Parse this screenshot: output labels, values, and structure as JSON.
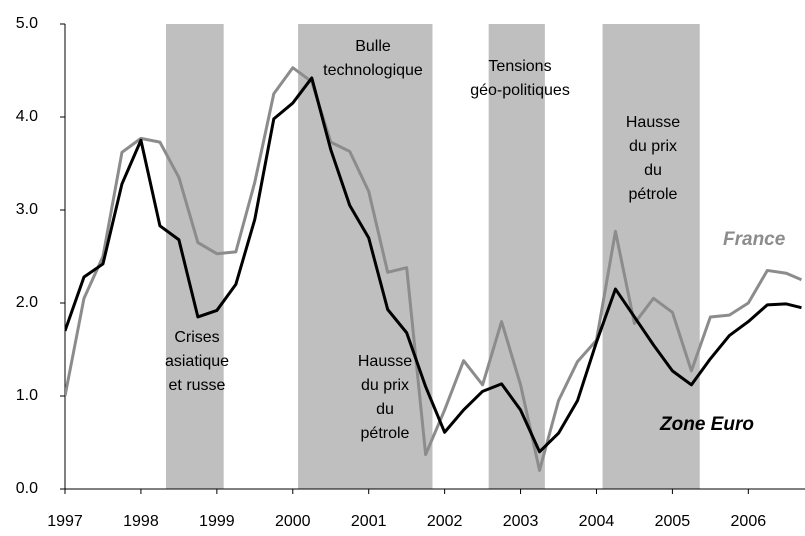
{
  "chart_data": {
    "type": "line",
    "x": [
      1997,
      1997.25,
      1997.5,
      1997.75,
      1998,
      1998.25,
      1998.5,
      1998.75,
      1999,
      1999.25,
      1999.5,
      1999.75,
      2000,
      2000.25,
      2000.5,
      2000.75,
      2001,
      2001.25,
      2001.5,
      2001.75,
      2002,
      2002.25,
      2002.5,
      2002.75,
      2003,
      2003.25,
      2003.5,
      2003.75,
      2004,
      2004.25,
      2004.5,
      2004.75,
      2005,
      2005.25,
      2005.5,
      2005.75,
      2006,
      2006.25,
      2006.5,
      2006.7
    ],
    "series": [
      {
        "name": "France",
        "color": "#8c8c8c",
        "values": [
          1.0,
          2.05,
          2.5,
          3.62,
          3.77,
          3.73,
          3.35,
          2.65,
          2.53,
          2.55,
          3.3,
          4.25,
          4.53,
          4.38,
          3.73,
          3.63,
          3.2,
          2.33,
          2.38,
          0.37,
          0.85,
          1.38,
          1.12,
          1.8,
          1.12,
          0.2,
          0.95,
          1.37,
          1.6,
          2.77,
          1.78,
          2.05,
          1.9,
          1.27,
          1.85,
          1.87,
          2.0,
          2.35,
          2.32,
          2.25
        ]
      },
      {
        "name": "Zone Euro",
        "color": "#000000",
        "values": [
          1.7,
          2.28,
          2.42,
          3.28,
          3.75,
          2.83,
          2.68,
          1.85,
          1.92,
          2.2,
          2.9,
          3.98,
          4.15,
          4.42,
          3.65,
          3.05,
          2.7,
          1.93,
          1.68,
          1.1,
          0.61,
          0.85,
          1.05,
          1.13,
          0.85,
          0.4,
          0.6,
          0.95,
          1.58,
          2.15,
          1.85,
          1.55,
          1.27,
          1.12,
          1.4,
          1.65,
          1.8,
          1.98,
          1.99,
          1.95
        ]
      }
    ],
    "periods": [
      [
        1998.33,
        1999.09
      ],
      [
        2000.07,
        2001.84
      ],
      [
        2002.58,
        2003.32
      ],
      [
        2004.08,
        2005.36
      ]
    ],
    "period_color": "#bfbfbf",
    "annotations": [
      [
        "Crises",
        "asiatique",
        "et russe"
      ],
      [
        "Bulle",
        "technologique"
      ],
      [
        "Tensions",
        "géo-politiques"
      ],
      [
        "Hausse",
        "du prix",
        "du",
        "pétrole"
      ],
      [
        "Hausse",
        "du prix",
        "du",
        "pétrole"
      ]
    ],
    "xlim": [
      1997,
      2006.72
    ],
    "xticks": [
      1997,
      1998,
      1999,
      2000,
      2001,
      2002,
      2003,
      2004,
      2005,
      2006
    ],
    "ylim": [
      0,
      5
    ],
    "yticks": [
      {
        "value": 0,
        "label": "0.0"
      },
      {
        "value": 1,
        "label": "1.0"
      },
      {
        "value": 2,
        "label": "2.0"
      },
      {
        "value": 3,
        "label": "3.0"
      },
      {
        "value": 4,
        "label": "4.0"
      },
      {
        "value": 5,
        "label": "5.0"
      }
    ],
    "grid": false
  }
}
